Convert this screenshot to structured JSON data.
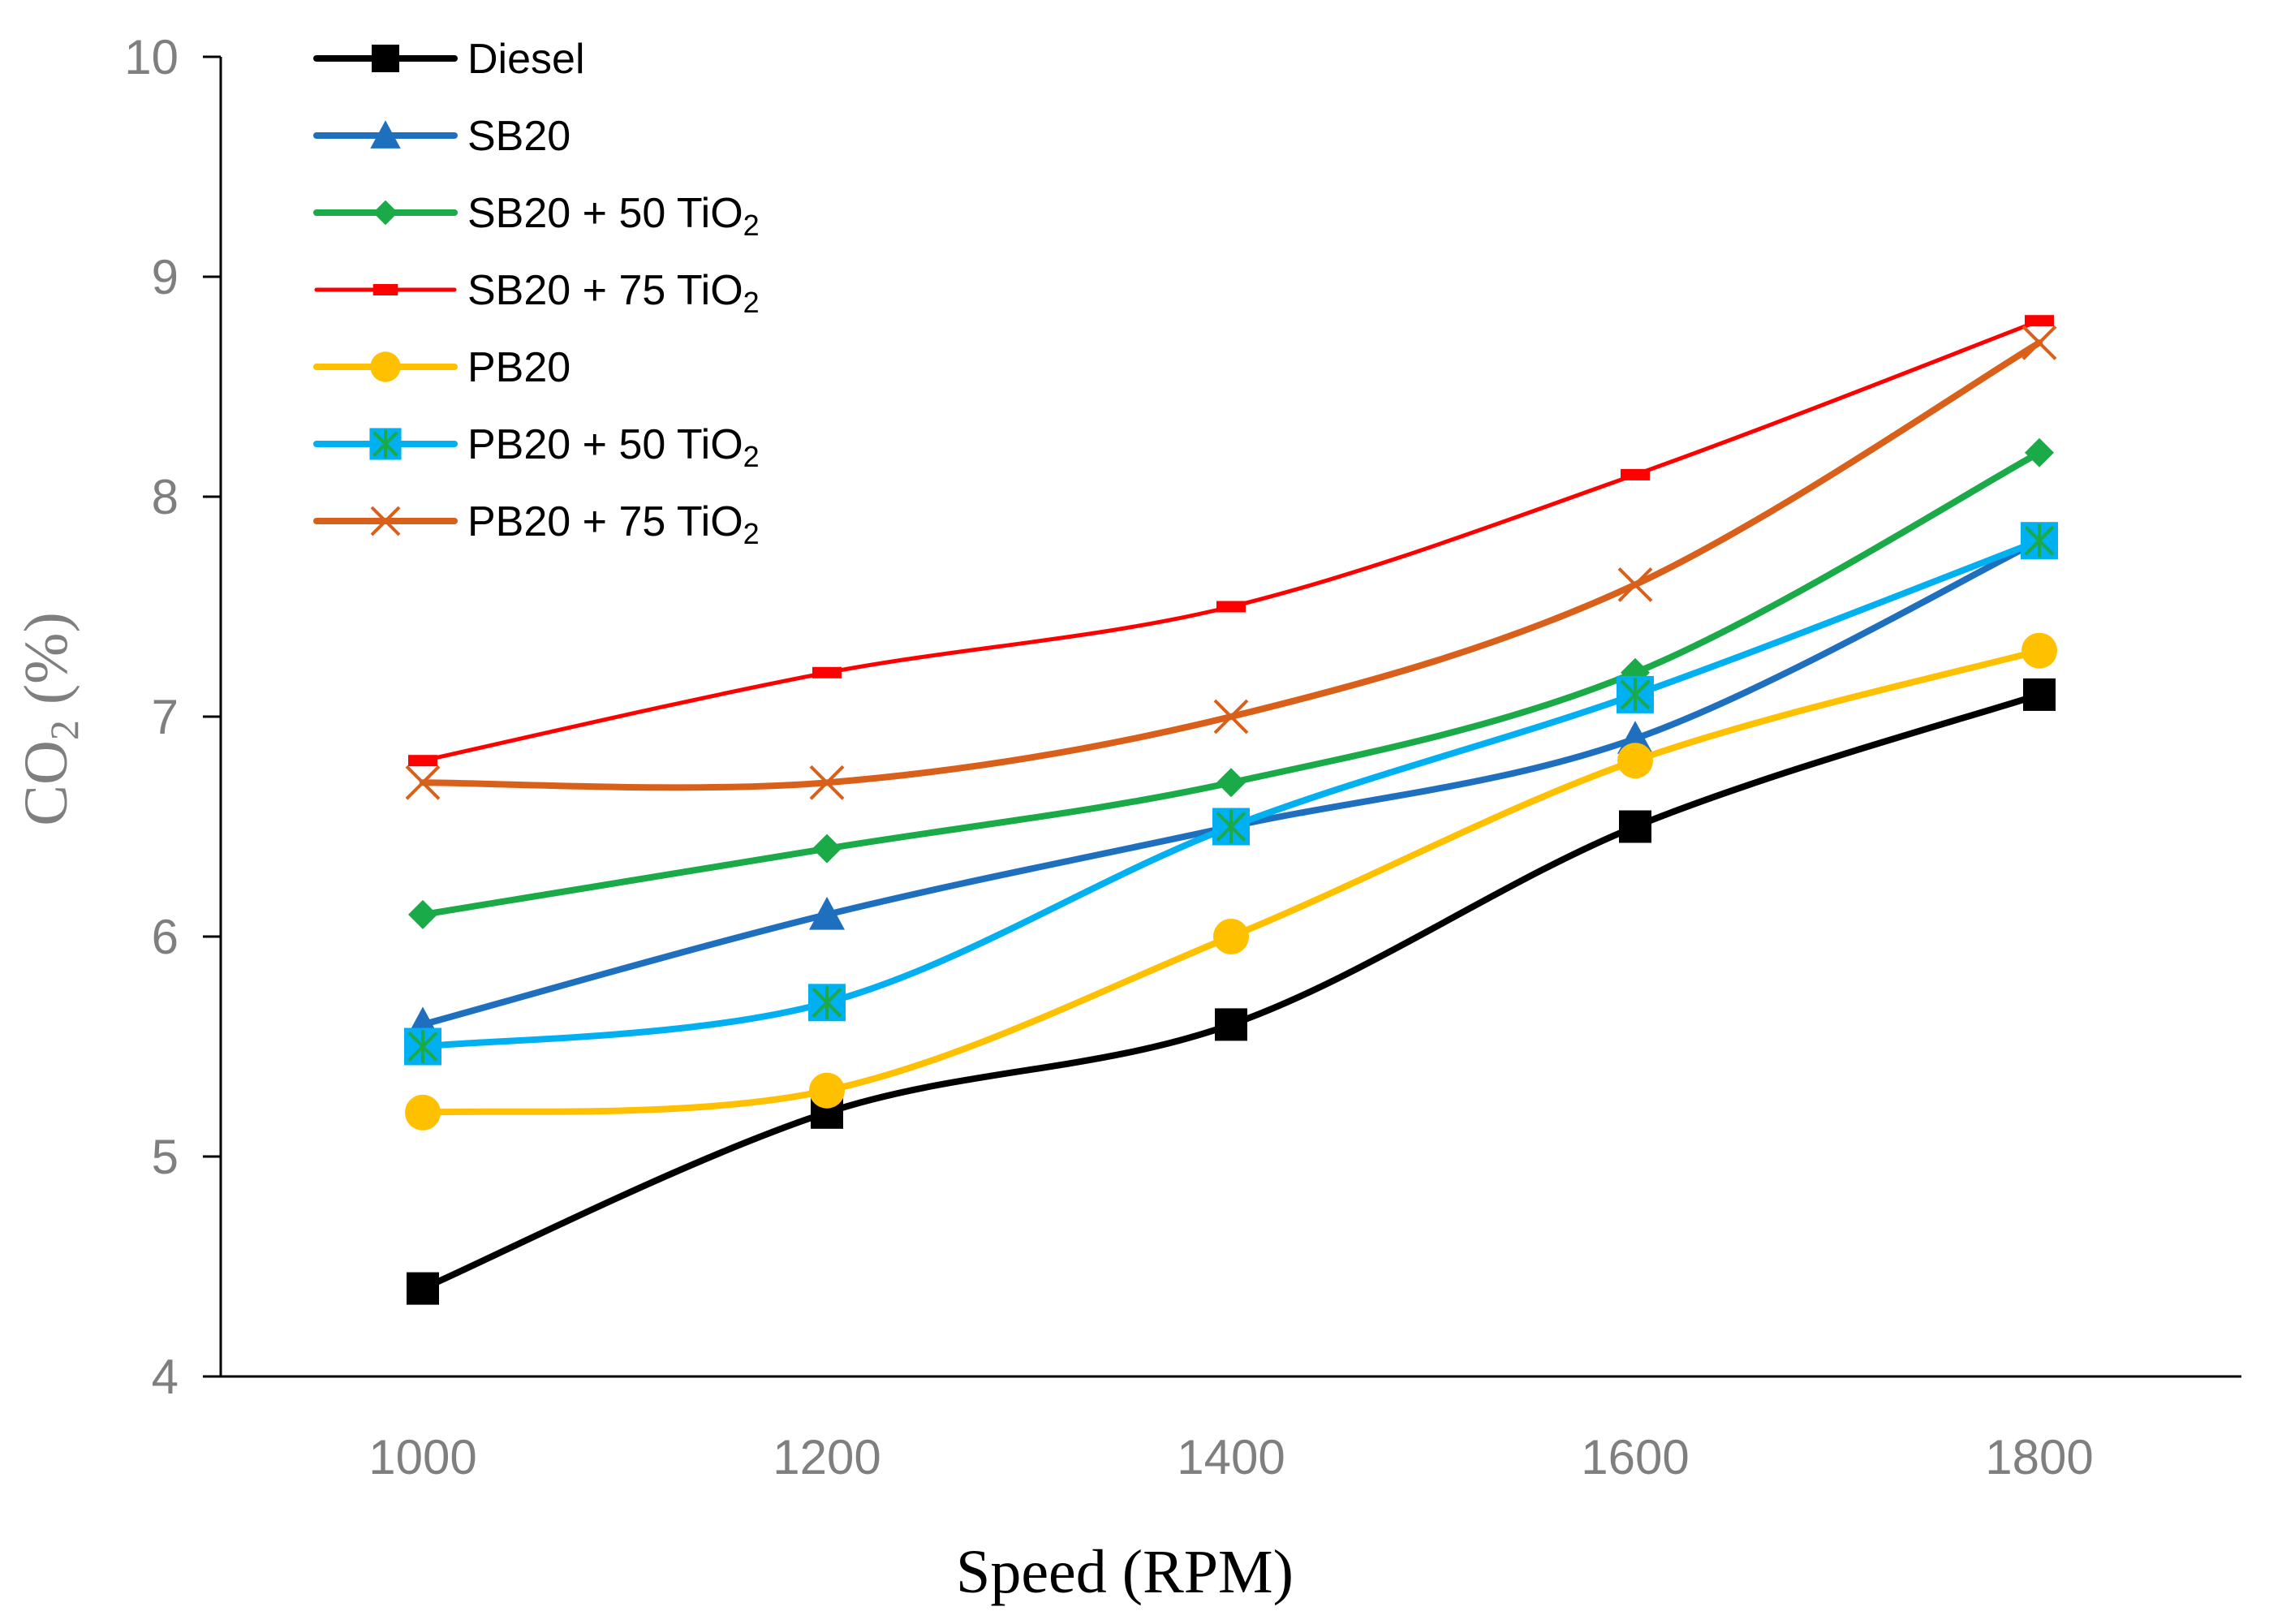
{
  "chart_data": {
    "type": "line",
    "title": "",
    "xlabel": "Speed (RPM)",
    "ylabel_main": "CO",
    "ylabel_sub": "2",
    "ylabel_tail": " (%)",
    "x": [
      1000,
      1200,
      1400,
      1600,
      1800
    ],
    "x_tick_labels": [
      "1000",
      "1200",
      "1400",
      "1600",
      "1800"
    ],
    "xlim": [
      900,
      1900
    ],
    "ylim": [
      4,
      10
    ],
    "y_ticks": [
      4,
      5,
      6,
      7,
      8,
      9,
      10
    ],
    "y_tick_labels": [
      "4",
      "5",
      "6",
      "7",
      "8",
      "9",
      "10"
    ],
    "grid": false,
    "legend_position": "top-left",
    "series": [
      {
        "name": "Diesel",
        "name_main": "Diesel",
        "name_sub": "",
        "color": "#000000",
        "marker": "square",
        "smooth": true,
        "values": [
          4.4,
          5.2,
          5.6,
          6.5,
          7.1
        ]
      },
      {
        "name": "SB20",
        "name_main": "SB20",
        "name_sub": "",
        "color": "#1f6fbf",
        "marker": "triangle",
        "smooth": true,
        "values": [
          5.6,
          6.1,
          6.5,
          6.9,
          7.8
        ]
      },
      {
        "name": "SB20 + 50 TiO2",
        "name_main": "SB20 + 50 TiO",
        "name_sub": "2",
        "color": "#1aaa48",
        "marker": "diamond",
        "smooth": true,
        "values": [
          6.1,
          6.4,
          6.7,
          7.2,
          8.2
        ]
      },
      {
        "name": "SB20 + 75 TiO2",
        "name_main": "SB20 + 75 TiO",
        "name_sub": "2",
        "color": "#ff0000",
        "marker": "dash",
        "smooth": true,
        "values": [
          6.8,
          7.2,
          7.5,
          8.1,
          8.8
        ]
      },
      {
        "name": "PB20",
        "name_main": "PB20",
        "name_sub": "",
        "color": "#ffc000",
        "marker": "circle",
        "smooth": true,
        "values": [
          5.2,
          5.3,
          6.0,
          6.8,
          7.3
        ]
      },
      {
        "name": "PB20 + 50 TiO2",
        "name_main": "PB20 + 50 TiO",
        "name_sub": "2",
        "color": "#00b0f0",
        "marker": "square-star",
        "marker_accent": "#1aaa48",
        "smooth": true,
        "values": [
          5.5,
          5.7,
          6.5,
          7.1,
          7.8
        ]
      },
      {
        "name": "PB20 + 75 TiO2",
        "name_main": "PB20 + 75 TiO",
        "name_sub": "2",
        "color": "#d9601a",
        "marker": "x",
        "smooth": true,
        "values": [
          6.7,
          6.7,
          7.0,
          7.6,
          8.7
        ]
      }
    ]
  }
}
